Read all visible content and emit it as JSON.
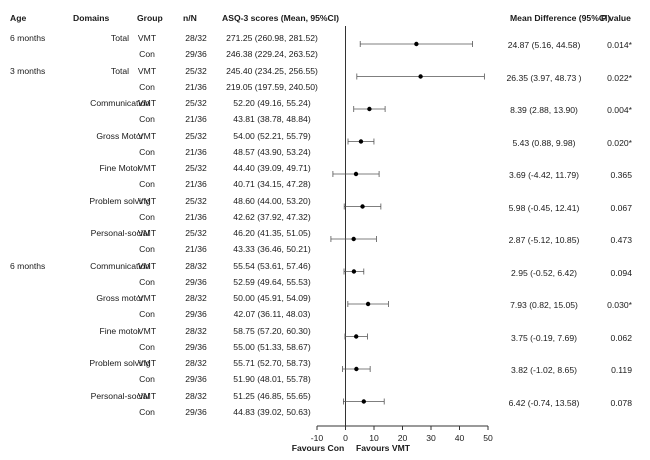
{
  "headers": {
    "age": "Age",
    "domains": "Domains",
    "group": "Group",
    "n": "n/N",
    "scores": "ASQ-3 scores (Mean, 95%CI)",
    "md": "Mean Difference  (95%CI)",
    "p": "P value"
  },
  "footer": {
    "left": "Favours Con",
    "right": "Favours VMT"
  },
  "chart_data": {
    "type": "forest",
    "xlim": [
      -10,
      50
    ],
    "xticks": [
      -10,
      0,
      10,
      20,
      30,
      40,
      50
    ],
    "xtick_labels": [
      "-10",
      "0",
      "10",
      "20",
      "30",
      "40",
      "50"
    ],
    "reference_line": 0,
    "rows": [
      {
        "age": "6 months",
        "domain": "Total",
        "vmt": {
          "n": "28/32",
          "score": "271.25 (260.98, 281.52)"
        },
        "con": {
          "n": "29/36",
          "score": "246.38 (229.24, 263.52)"
        },
        "md": 24.87,
        "lo": 5.16,
        "hi": 44.58,
        "md_text": "24.87 (5.16, 44.58)",
        "p": "0.014*"
      },
      {
        "age": "3 months",
        "domain": "Total",
        "vmt": {
          "n": "25/32",
          "score": "245.40 (234.25, 256.55)"
        },
        "con": {
          "n": "21/36",
          "score": "219.05 (197.59, 240.50)"
        },
        "md": 26.35,
        "lo": 3.97,
        "hi": 48.73,
        "md_text": "26.35 (3.97, 48.73 )",
        "p": "0.022*"
      },
      {
        "age": "",
        "domain": "Communication",
        "vmt": {
          "n": "25/32",
          "score": "52.20 (49.16, 55.24)"
        },
        "con": {
          "n": "21/36",
          "score": "43.81 (38.78, 48.84)"
        },
        "md": 8.39,
        "lo": 2.88,
        "hi": 13.9,
        "md_text": "8.39 (2.88, 13.90)",
        "p": "0.004*"
      },
      {
        "age": "",
        "domain": "Gross Motor",
        "vmt": {
          "n": "25/32",
          "score": "54.00 (52.21, 55.79)"
        },
        "con": {
          "n": "21/36",
          "score": "48.57 (43.90, 53.24)"
        },
        "md": 5.43,
        "lo": 0.88,
        "hi": 9.98,
        "md_text": "5.43 (0.88, 9.98)",
        "p": "0.020*"
      },
      {
        "age": "",
        "domain": "Fine Motor",
        "vmt": {
          "n": "25/32",
          "score": "44.40 (39.09, 49.71)"
        },
        "con": {
          "n": "21/36",
          "score": "40.71 (34.15, 47.28)"
        },
        "md": 3.69,
        "lo": -4.42,
        "hi": 11.79,
        "md_text": "3.69 (-4.42, 11.79)",
        "p": "0.365"
      },
      {
        "age": "",
        "domain": "Problem solving",
        "vmt": {
          "n": "25/32",
          "score": "48.60 (44.00, 53.20)"
        },
        "con": {
          "n": "21/36",
          "score": "42.62 (37.92, 47.32)"
        },
        "md": 5.98,
        "lo": -0.45,
        "hi": 12.41,
        "md_text": "5.98 (-0.45, 12.41)",
        "p": "0.067"
      },
      {
        "age": "",
        "domain": "Personal-social",
        "vmt": {
          "n": "25/32",
          "score": "46.20 (41.35, 51.05)"
        },
        "con": {
          "n": "21/36",
          "score": "43.33 (36.46, 50.21)"
        },
        "md": 2.87,
        "lo": -5.12,
        "hi": 10.85,
        "md_text": "2.87 (-5.12, 10.85)",
        "p": "0.473"
      },
      {
        "age": "6 months",
        "domain": "Communication",
        "vmt": {
          "n": "28/32",
          "score": "55.54 (53.61, 57.46)"
        },
        "con": {
          "n": "29/36",
          "score": "52.59 (49.64, 55.53)"
        },
        "md": 2.95,
        "lo": -0.52,
        "hi": 6.42,
        "md_text": "2.95 (-0.52, 6.42)",
        "p": "0.094"
      },
      {
        "age": "",
        "domain": "Gross motor",
        "vmt": {
          "n": "28/32",
          "score": "50.00 (45.91, 54.09)"
        },
        "con": {
          "n": "29/36",
          "score": "42.07 (36.11, 48.03)"
        },
        "md": 7.93,
        "lo": 0.82,
        "hi": 15.05,
        "md_text": "7.93 (0.82, 15.05)",
        "p": "0.030*"
      },
      {
        "age": "",
        "domain": "Fine motor",
        "vmt": {
          "n": "28/32",
          "score": "58.75 (57.20, 60.30)"
        },
        "con": {
          "n": "29/36",
          "score": "55.00 (51.33, 58.67)"
        },
        "md": 3.75,
        "lo": -0.19,
        "hi": 7.69,
        "md_text": "3.75 (-0.19, 7.69)",
        "p": "0.062"
      },
      {
        "age": "",
        "domain": "Problem solving",
        "vmt": {
          "n": "28/32",
          "score": "55.71 (52.70, 58.73)"
        },
        "con": {
          "n": "29/36",
          "score": "51.90 (48.01, 55.78)"
        },
        "md": 3.82,
        "lo": -1.02,
        "hi": 8.65,
        "md_text": "3.82 (-1.02, 8.65)",
        "p": "0.119"
      },
      {
        "age": "",
        "domain": "Personal-social",
        "vmt": {
          "n": "28/32",
          "score": "51.25 (46.85, 55.65)"
        },
        "con": {
          "n": "29/36",
          "score": "44.83 (39.02, 50.63)"
        },
        "md": 6.42,
        "lo": -0.74,
        "hi": 13.58,
        "md_text": "6.42 (-0.74, 13.58)",
        "p": "0.078"
      }
    ],
    "group_labels": {
      "vmt": "VMT",
      "con": "Con"
    }
  }
}
